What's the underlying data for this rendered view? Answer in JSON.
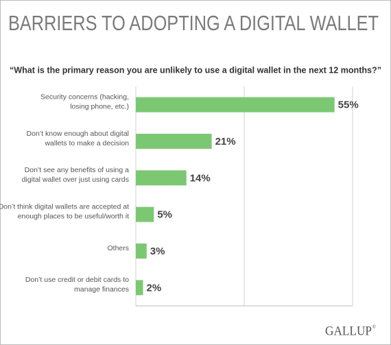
{
  "chart_data": {
    "type": "bar",
    "orientation": "horizontal",
    "title": "BARRIERS TO ADOPTING A DIGITAL WALLET",
    "subtitle": "“What is the primary reason you are unlikely to use a digital wallet in the next 12 months?”",
    "categories": [
      [
        "Security concerns (hacking,",
        "losing phone, etc.)"
      ],
      [
        "Don’t know enough about digital",
        "wallets to make a decision"
      ],
      [
        "Don’t see any benefits of using a",
        "digital wallet over just using cards"
      ],
      [
        "Don’t think digital wallets are accepted at",
        "enough places to be useful/worth it"
      ],
      [
        "Others"
      ],
      [
        "Don’t use credit or debit cards to",
        "manage finances"
      ]
    ],
    "values": [
      55,
      21,
      14,
      5,
      3,
      2
    ],
    "value_labels": [
      "55%",
      "21%",
      "14%",
      "5%",
      "3%",
      "2%"
    ],
    "color": "#7cc872",
    "xlim": [
      0,
      60
    ],
    "xticks": [
      0,
      30,
      60
    ],
    "grid": true,
    "logo": "GALLUP",
    "logo_mark": "®"
  }
}
